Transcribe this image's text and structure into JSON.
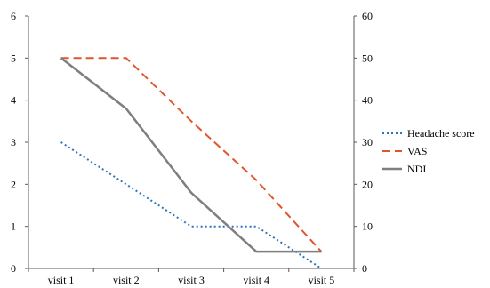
{
  "chart_data": {
    "type": "line",
    "title": "",
    "xlabel": "",
    "ylabel": "",
    "y2label": "",
    "categories": [
      "visit 1",
      "visit 2",
      "visit 3",
      "visit 4",
      "visit 5"
    ],
    "ylim": [
      0,
      6
    ],
    "y_ticks": [
      "0",
      "1",
      "2",
      "3",
      "4",
      "5",
      "6"
    ],
    "y2lim": [
      0,
      60
    ],
    "y2_ticks": [
      "0",
      "10",
      "20",
      "30",
      "40",
      "50",
      "60"
    ],
    "grid": false,
    "legend_position": "right",
    "series": [
      {
        "name": "Headache score",
        "axis": "left",
        "values": [
          3,
          2,
          1,
          1,
          0
        ],
        "color": "#2e75b6",
        "style": "dotted"
      },
      {
        "name": "VAS",
        "axis": "right",
        "values": [
          50,
          50,
          35,
          21,
          4
        ],
        "color": "#e0562a",
        "style": "dashed"
      },
      {
        "name": "NDI",
        "axis": "right",
        "values": [
          50,
          38,
          18,
          4,
          4
        ],
        "color": "#7f7f7f",
        "style": "solid"
      }
    ]
  }
}
